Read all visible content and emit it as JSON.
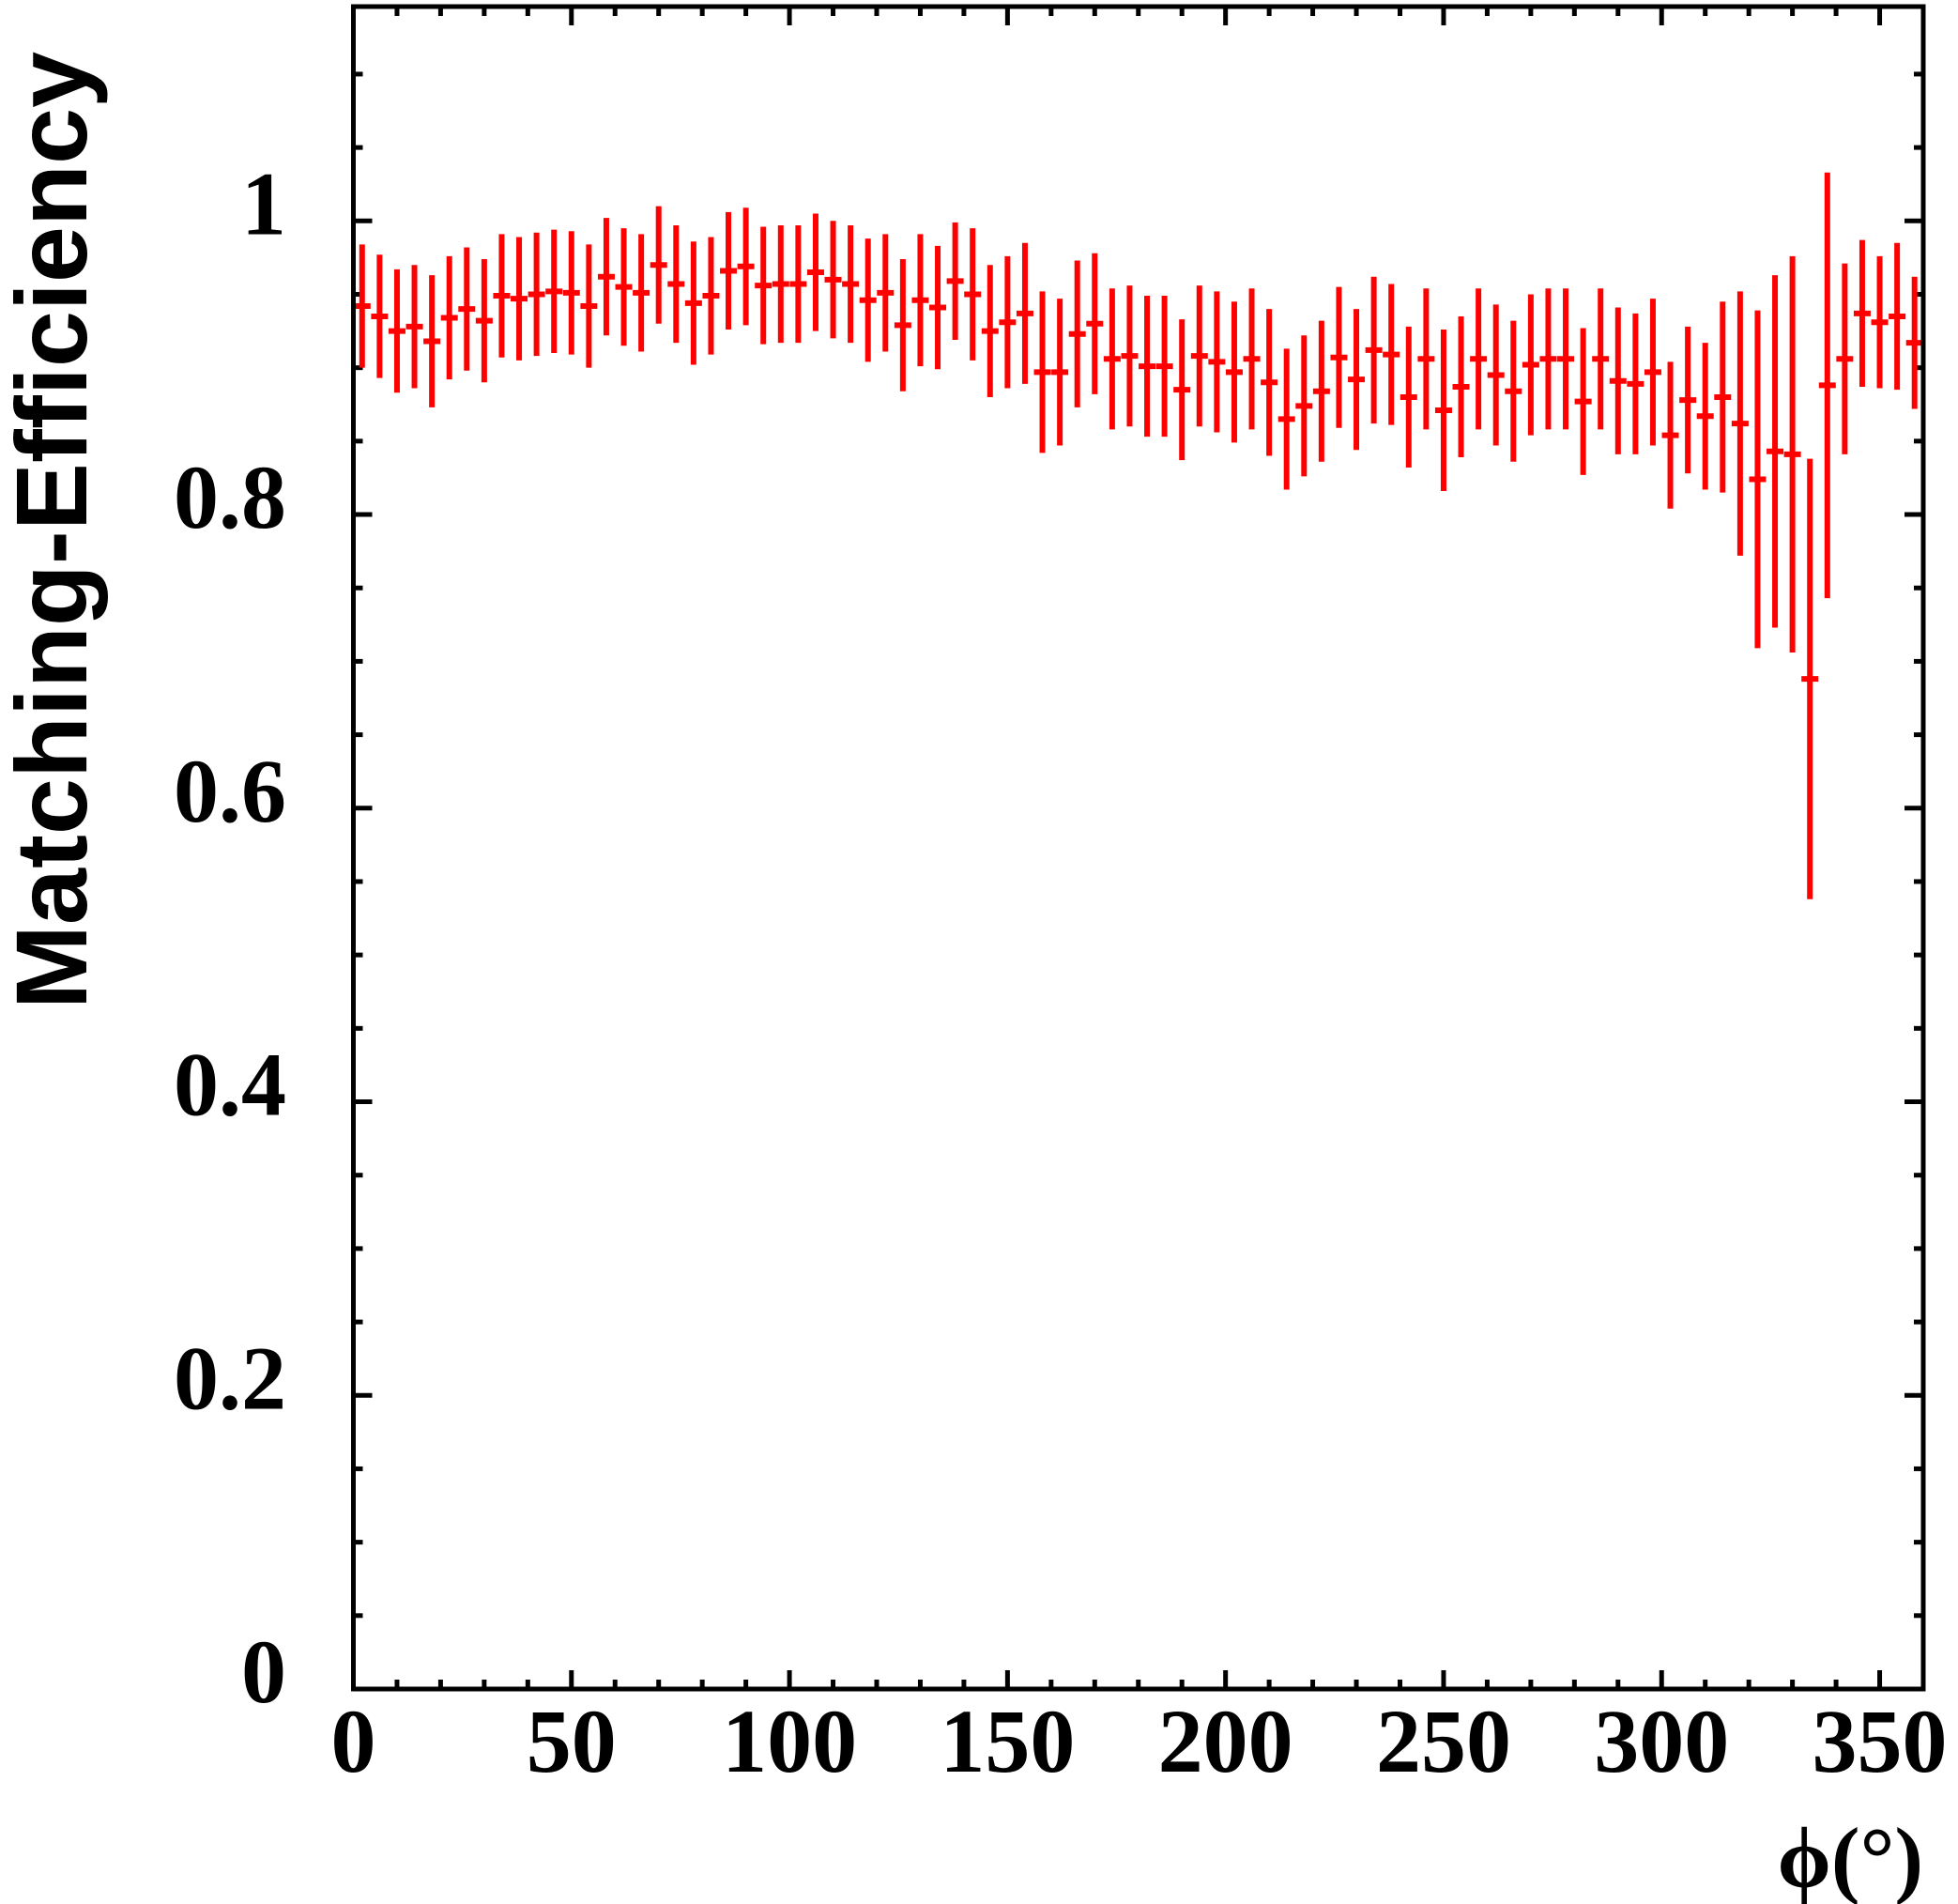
{
  "chart_data": {
    "type": "errorbar",
    "ylabel": "Matching-Efficiency",
    "xlabel": "ϕ(°)",
    "color": "#ff0000",
    "x": [
      2,
      6,
      10,
      14,
      18,
      22,
      26,
      30,
      34,
      38,
      42,
      46,
      50,
      54,
      58,
      62,
      66,
      70,
      74,
      78,
      82,
      86,
      90,
      94,
      98,
      102,
      106,
      110,
      114,
      118,
      122,
      126,
      130,
      134,
      138,
      142,
      146,
      150,
      154,
      158,
      162,
      166,
      170,
      174,
      178,
      182,
      186,
      190,
      194,
      198,
      202,
      206,
      210,
      214,
      218,
      222,
      226,
      230,
      234,
      238,
      242,
      246,
      250,
      254,
      258,
      262,
      266,
      270,
      274,
      278,
      282,
      286,
      290,
      294,
      298,
      302,
      306,
      310,
      314,
      318,
      322,
      326,
      330,
      334,
      338,
      342,
      346,
      350,
      354,
      358
    ],
    "values": [
      0.942,
      0.935,
      0.925,
      0.928,
      0.918,
      0.934,
      0.94,
      0.932,
      0.949,
      0.947,
      0.95,
      0.952,
      0.951,
      0.942,
      0.962,
      0.955,
      0.951,
      0.97,
      0.957,
      0.944,
      0.949,
      0.966,
      0.969,
      0.956,
      0.957,
      0.957,
      0.965,
      0.96,
      0.957,
      0.946,
      0.951,
      0.929,
      0.946,
      0.941,
      0.959,
      0.95,
      0.925,
      0.931,
      0.937,
      0.897,
      0.897,
      0.923,
      0.93,
      0.906,
      0.908,
      0.901,
      0.901,
      0.885,
      0.908,
      0.904,
      0.897,
      0.906,
      0.89,
      0.865,
      0.874,
      0.884,
      0.907,
      0.892,
      0.912,
      0.909,
      0.88,
      0.906,
      0.871,
      0.887,
      0.906,
      0.895,
      0.884,
      0.902,
      0.906,
      0.906,
      0.877,
      0.906,
      0.891,
      0.889,
      0.897,
      0.854,
      0.878,
      0.867,
      0.88,
      0.862,
      0.824,
      0.843,
      0.841,
      0.688,
      0.888,
      0.906,
      0.937,
      0.931,
      0.935,
      0.917
    ],
    "errors": [
      0.042,
      0.042,
      0.042,
      0.042,
      0.045,
      0.042,
      0.042,
      0.042,
      0.042,
      0.042,
      0.042,
      0.042,
      0.042,
      0.042,
      0.04,
      0.04,
      0.04,
      0.04,
      0.04,
      0.042,
      0.04,
      0.04,
      0.04,
      0.04,
      0.04,
      0.04,
      0.04,
      0.04,
      0.04,
      0.042,
      0.04,
      0.045,
      0.045,
      0.042,
      0.04,
      0.045,
      0.045,
      0.045,
      0.048,
      0.055,
      0.05,
      0.05,
      0.048,
      0.048,
      0.048,
      0.048,
      0.048,
      0.048,
      0.048,
      0.048,
      0.048,
      0.048,
      0.05,
      0.048,
      0.048,
      0.048,
      0.048,
      0.048,
      0.05,
      0.048,
      0.048,
      0.048,
      0.055,
      0.048,
      0.048,
      0.048,
      0.048,
      0.048,
      0.048,
      0.048,
      0.05,
      0.048,
      0.05,
      0.048,
      0.05,
      0.05,
      0.05,
      0.05,
      0.065,
      0.09,
      0.115,
      0.12,
      0.135,
      0.15,
      0.145,
      0.065,
      0.05,
      0.045,
      0.05,
      0.045
    ],
    "xlim": [
      0,
      360
    ],
    "ylim": [
      0,
      1.146
    ],
    "xticks": [
      0,
      50,
      100,
      150,
      200,
      250,
      300,
      350
    ],
    "yticks": [
      0,
      0.2,
      0.4,
      0.6,
      0.8,
      1
    ],
    "xminorticks": [
      10,
      20,
      30,
      40,
      60,
      70,
      80,
      90,
      110,
      120,
      130,
      140,
      160,
      170,
      180,
      190,
      210,
      220,
      230,
      240,
      260,
      270,
      280,
      290,
      310,
      320,
      330,
      340,
      360
    ],
    "yminorticks": [
      0.1,
      0.3,
      0.5,
      0.7,
      0.9,
      1.1,
      0.05,
      0.15,
      0.25,
      0.35,
      0.45,
      0.55,
      0.65,
      0.75,
      0.85,
      0.95,
      1.05
    ]
  }
}
